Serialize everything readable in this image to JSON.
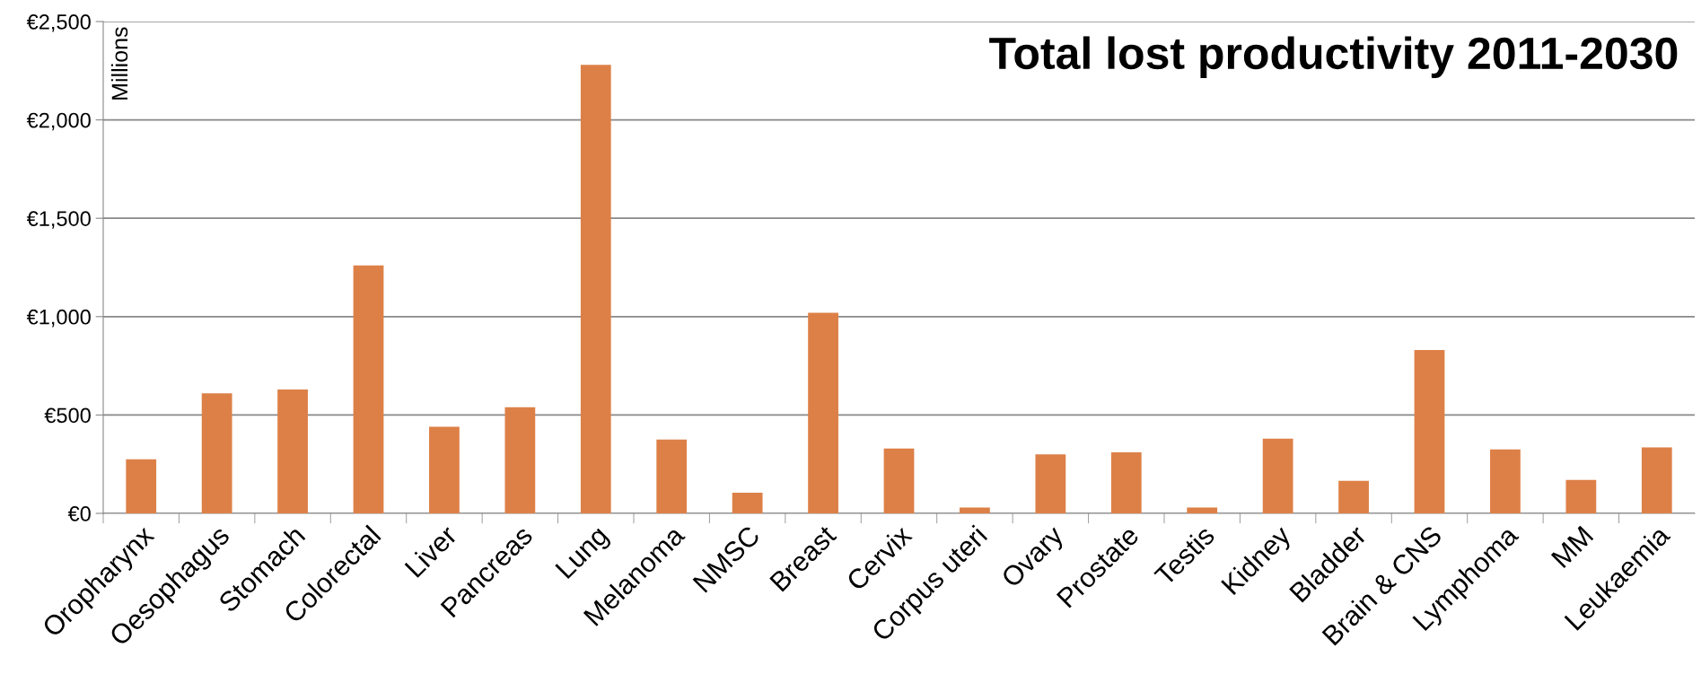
{
  "chart_data": {
    "type": "bar",
    "title": "Total lost productivity 2011-2030",
    "annotations": [
      "Millions"
    ],
    "categories": [
      "Oropharynx",
      "Oesophagus",
      "Stomach",
      "Colorectal",
      "Liver",
      "Pancreas",
      "Lung",
      "Melanoma",
      "NMSC",
      "Breast",
      "Cervix",
      "Corpus uteri",
      "Ovary",
      "Prostate",
      "Testis",
      "Kidney",
      "Bladder",
      "Brain & CNS",
      "Lymphoma",
      "MM",
      "Leukaemia"
    ],
    "values": [
      275,
      610,
      630,
      1260,
      440,
      540,
      2280,
      375,
      105,
      1020,
      330,
      30,
      300,
      310,
      30,
      380,
      165,
      830,
      325,
      170,
      335
    ],
    "color": "#dd8047",
    "ylim": [
      0,
      2500
    ],
    "yticks": [
      {
        "value": 0,
        "label": "€0"
      },
      {
        "value": 500,
        "label": "€500"
      },
      {
        "value": 1000,
        "label": "€1,000"
      },
      {
        "value": 1500,
        "label": "€1,500"
      },
      {
        "value": 2000,
        "label": "€2,000"
      },
      {
        "value": 2500,
        "label": "€2,500"
      }
    ],
    "grid": "y",
    "legend": false
  }
}
